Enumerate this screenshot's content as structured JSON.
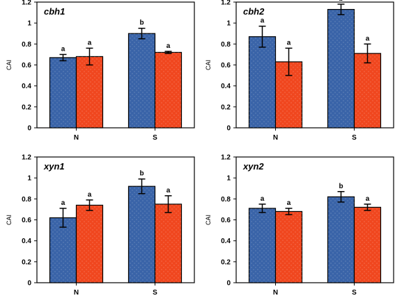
{
  "colors": {
    "N_bar": "#3a64a8",
    "S_bar": "#f0471f",
    "stroke": "#000000",
    "background": "#ffffff"
  },
  "chart_data": [
    {
      "type": "bar",
      "title": "cbh1",
      "categories": [
        "N",
        "S"
      ],
      "ylabel": "CAI",
      "ylim": [
        0,
        1.2
      ],
      "yticks": [
        "0",
        "0.2",
        "0.4",
        "0.6",
        "0.8",
        "1",
        "1.2"
      ],
      "grid": false,
      "legend": "none",
      "series": [
        {
          "values": [
            0.67,
            0.9
          ],
          "errors": [
            0.03,
            0.05
          ],
          "labels": [
            "a",
            "b"
          ]
        },
        {
          "values": [
            0.68,
            0.72
          ],
          "errors": [
            0.08,
            0.01
          ],
          "labels": [
            "a",
            "a"
          ]
        }
      ]
    },
    {
      "type": "bar",
      "title": "cbh2",
      "categories": [
        "N",
        "S"
      ],
      "ylabel": "CAI",
      "ylim": [
        0,
        1.2
      ],
      "yticks": [
        "0",
        "0.2",
        "0.4",
        "0.6",
        "0.8",
        "1",
        "1.2"
      ],
      "grid": false,
      "legend": "none",
      "series": [
        {
          "values": [
            0.87,
            1.13
          ],
          "errors": [
            0.1,
            0.05
          ],
          "labels": [
            "a",
            "b"
          ]
        },
        {
          "values": [
            0.63,
            0.71
          ],
          "errors": [
            0.13,
            0.09
          ],
          "labels": [
            "a",
            "a"
          ]
        }
      ]
    },
    {
      "type": "bar",
      "title": "xyn1",
      "categories": [
        "N",
        "S"
      ],
      "ylabel": "CAI",
      "ylim": [
        0,
        1.2
      ],
      "yticks": [
        "0",
        "0.2",
        "0.4",
        "0.6",
        "0.8",
        "1",
        "1.2"
      ],
      "grid": false,
      "legend": "none",
      "series": [
        {
          "values": [
            0.62,
            0.92
          ],
          "errors": [
            0.09,
            0.07
          ],
          "labels": [
            "a",
            "b"
          ]
        },
        {
          "values": [
            0.74,
            0.75
          ],
          "errors": [
            0.05,
            0.08
          ],
          "labels": [
            "a",
            "a"
          ]
        }
      ]
    },
    {
      "type": "bar",
      "title": "xyn2",
      "categories": [
        "N",
        "S"
      ],
      "ylabel": "CAI",
      "ylim": [
        0,
        1.2
      ],
      "yticks": [
        "0",
        "0.2",
        "0.4",
        "0.6",
        "0.8",
        "1",
        "1.2"
      ],
      "grid": false,
      "legend": "none",
      "series": [
        {
          "values": [
            0.71,
            0.82
          ],
          "errors": [
            0.04,
            0.05
          ],
          "labels": [
            "a",
            "b"
          ]
        },
        {
          "values": [
            0.68,
            0.72
          ],
          "errors": [
            0.03,
            0.03
          ],
          "labels": [
            "a",
            "a"
          ]
        }
      ]
    }
  ]
}
